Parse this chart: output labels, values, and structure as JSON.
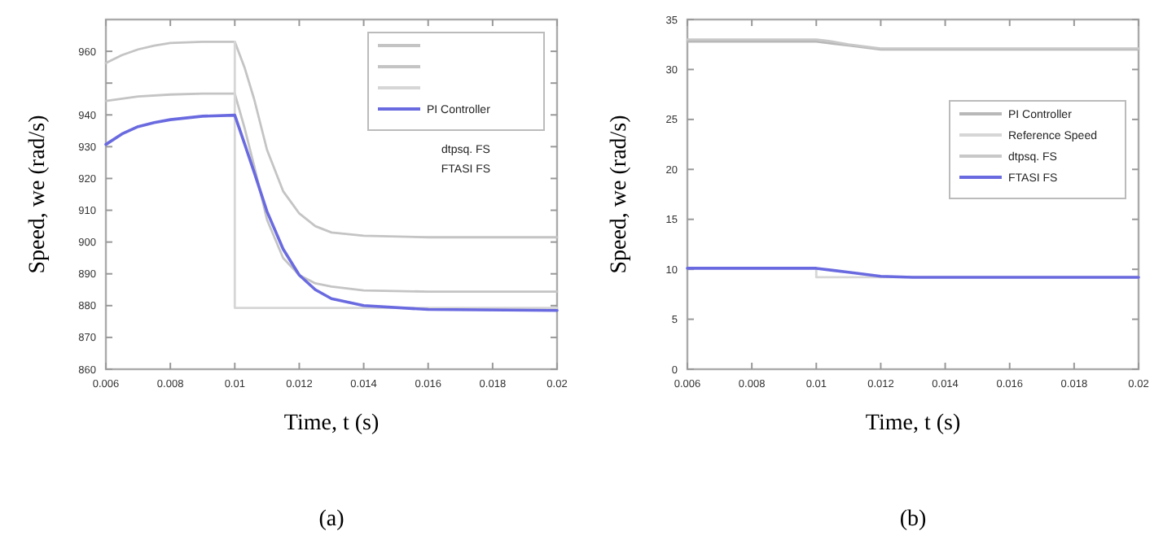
{
  "chart_data": [
    {
      "type": "line",
      "title": "(a)",
      "xlabel": "Time, t (s)",
      "ylabel": "Speed, we (rad/s)",
      "xlim": [
        0.006,
        0.02
      ],
      "xticks": [
        0.006,
        0.008,
        0.01,
        0.012,
        0.014,
        0.016,
        0.018,
        0.02
      ],
      "ylim": [
        860,
        970
      ],
      "yticks": [
        860,
        870,
        880,
        890,
        900,
        910,
        920,
        930,
        940,
        {
          "value": 950,
          "label": null
        },
        960
      ],
      "legend": "top right",
      "grid": false,
      "annotations": [
        "dtpsq. FS",
        "FTASI FS"
      ],
      "series": [
        {
          "color": "#c4c4c4",
          "x": [
            0.006,
            0.0065,
            0.007,
            0.0075,
            0.008,
            0.009,
            0.01,
            0.0103,
            0.0106,
            0.011,
            0.0115,
            0.012,
            0.0125,
            0.013,
            0.014,
            0.016,
            0.02
          ],
          "values": [
            956.3,
            958.8,
            960.6,
            961.8,
            962.6,
            963,
            963,
            955,
            945,
            929,
            916,
            909,
            905,
            903,
            902,
            901.5,
            901.5
          ]
        },
        {
          "color": "#c4c4c4",
          "x": [
            0.006,
            0.007,
            0.008,
            0.009,
            0.01,
            0.0103,
            0.0106,
            0.011,
            0.0115,
            0.012,
            0.0125,
            0.013,
            0.014,
            0.016,
            0.02
          ],
          "values": [
            944.4,
            945.8,
            946.4,
            946.7,
            946.7,
            936,
            924,
            907,
            895,
            889.6,
            887,
            886,
            884.8,
            884.4,
            884.4
          ]
        },
        {
          "color": "#d6d6d6",
          "x": [
            0.01,
            0.01,
            0.02
          ],
          "values": [
            963,
            879.3,
            879.3
          ]
        },
        {
          "name": "PI Controller",
          "color": "#6a6ae0",
          "x": [
            0.006,
            0.0065,
            0.007,
            0.0075,
            0.008,
            0.009,
            0.01,
            0.0103,
            0.0106,
            0.011,
            0.0115,
            0.012,
            0.0125,
            0.013,
            0.014,
            0.016,
            0.02
          ],
          "values": [
            930.7,
            934,
            936.3,
            937.6,
            938.5,
            939.6,
            939.9,
            931,
            922,
            909.6,
            897.8,
            889.6,
            885,
            882.2,
            880,
            878.8,
            878.5
          ]
        }
      ]
    },
    {
      "type": "line",
      "title": "(b)",
      "xlabel": "Time, t (s)",
      "ylabel": "Speed, we (rad/s)",
      "xlim": [
        0.006,
        0.02
      ],
      "xticks": [
        0.006,
        0.008,
        0.01,
        0.012,
        0.014,
        0.016,
        0.018,
        0.02
      ],
      "ylim": [
        0,
        35
      ],
      "yticks": [
        0,
        5,
        10,
        15,
        20,
        25,
        30,
        35
      ],
      "legend": "top right",
      "grid": false,
      "series": [
        {
          "name": "PI Controller",
          "color": "#b8b8b8",
          "x": [
            0.006,
            0.01,
            0.0105,
            0.011,
            0.0115,
            0.012,
            0.02
          ],
          "values": [
            32.8,
            32.8,
            32.6,
            32.4,
            32.2,
            32.0,
            32.0
          ]
        },
        {
          "name": "Reference Speed",
          "color": "#d6d6d6",
          "x": [
            0.006,
            0.01,
            0.01,
            0.02
          ],
          "values": [
            10.1,
            10.1,
            9.2,
            9.2
          ]
        },
        {
          "name": "dtpsq. FS",
          "color": "#c8c8c8",
          "x": [
            0.006,
            0.01,
            0.0105,
            0.011,
            0.0115,
            0.012,
            0.02
          ],
          "values": [
            33.0,
            33.0,
            32.8,
            32.5,
            32.3,
            32.1,
            32.1
          ]
        },
        {
          "name": "FTASI FS",
          "color": "#6a6ae0",
          "x": [
            0.006,
            0.01,
            0.0105,
            0.011,
            0.0115,
            0.012,
            0.013,
            0.02
          ],
          "values": [
            10.1,
            10.1,
            9.9,
            9.7,
            9.5,
            9.3,
            9.2,
            9.2
          ]
        }
      ]
    }
  ]
}
